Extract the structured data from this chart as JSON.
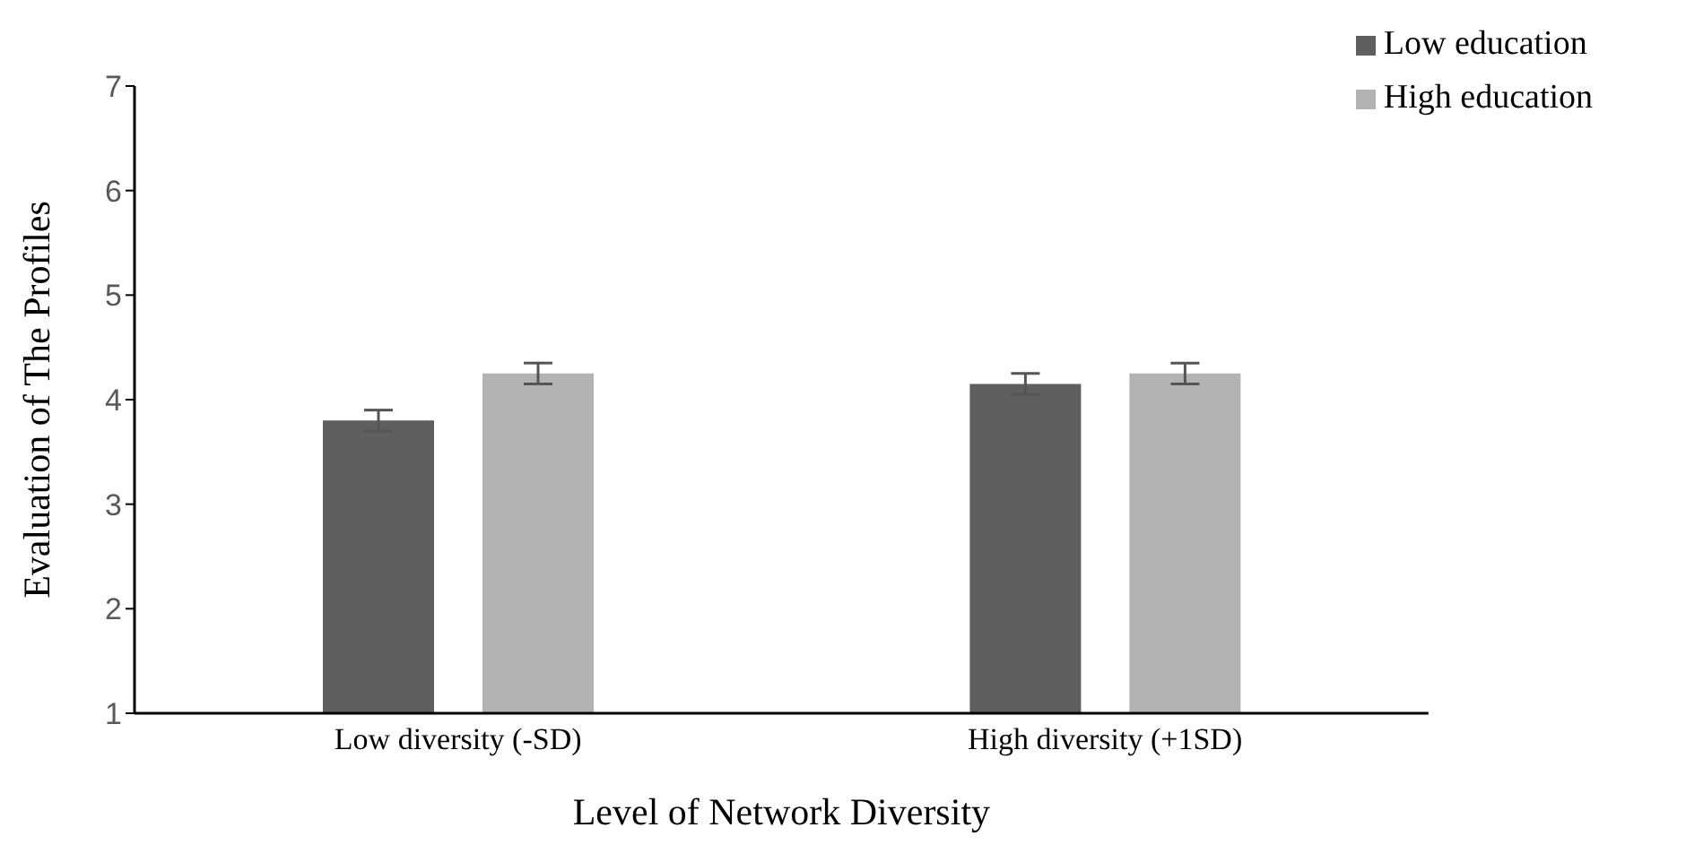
{
  "chart_data": {
    "type": "bar",
    "xlabel": "Level of Network Diversity",
    "ylabel": "Evaluation of The Profiles",
    "categories": [
      "Low diversity (-SD)",
      "High diversity (+1SD)"
    ],
    "series": [
      {
        "name": "Low education",
        "color": "#5f5f5f",
        "values": [
          3.8,
          4.15
        ],
        "errors": [
          0.1,
          0.1
        ]
      },
      {
        "name": "High education",
        "color": "#b3b3b3",
        "values": [
          4.25,
          4.25
        ],
        "errors": [
          0.1,
          0.1
        ]
      }
    ],
    "ylim": [
      1,
      7
    ],
    "yticks": [
      1,
      2,
      3,
      4,
      5,
      6,
      7
    ],
    "grid": false,
    "legend": "top right"
  }
}
